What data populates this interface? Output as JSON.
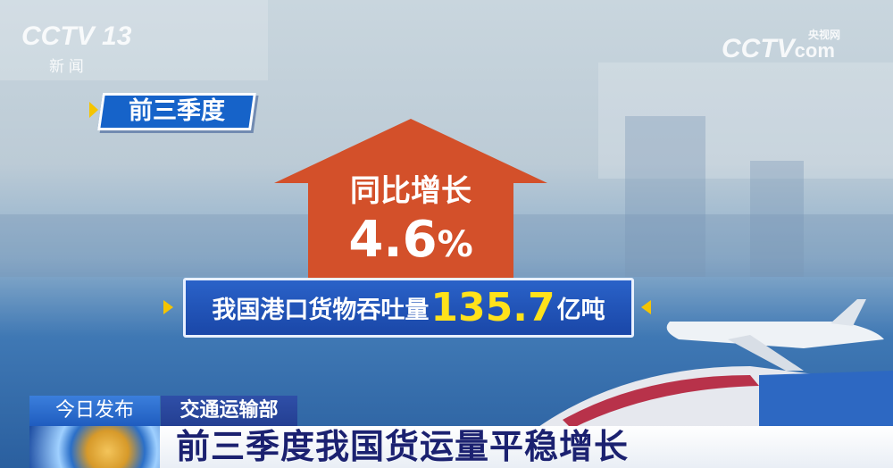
{
  "channel_logo": {
    "name": "CCTV",
    "number": "13",
    "sub": "新 闻"
  },
  "web_logo": {
    "name": "CCTV",
    "cn": "央视网",
    "suffix": "com"
  },
  "period_tag": "前三季度",
  "arrow": {
    "label": "同比增长",
    "value": "4.6",
    "unit": "%"
  },
  "stat": {
    "prefix": "我国港口货物吞吐量",
    "value": "135.7",
    "unit": "亿吨"
  },
  "lower_third": {
    "label": "今日发布",
    "source": "交通运输部",
    "headline": "前三季度我国货运量平稳增长"
  },
  "colors": {
    "arrow": "#d3502a",
    "box": "#1a4fb8",
    "highlight": "#ffe21a",
    "headline_text": "#1b2170"
  }
}
